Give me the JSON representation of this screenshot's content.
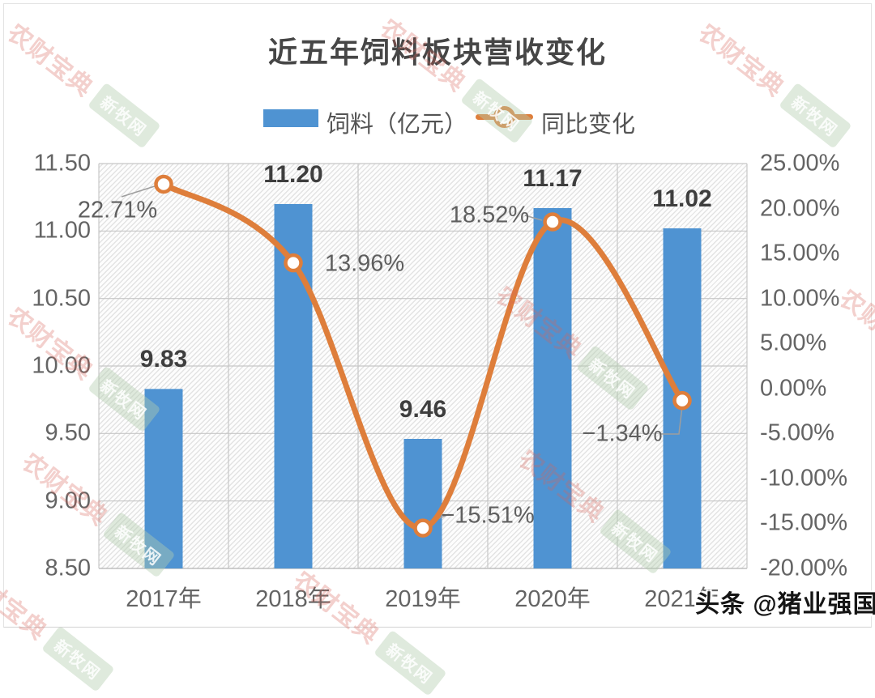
{
  "chart_data": {
    "type": "bar",
    "title": "近五年饲料板块营收变化",
    "categories": [
      "2017年",
      "2018年",
      "2019年",
      "2020年",
      "2021年"
    ],
    "series": [
      {
        "name": "饲料（亿元）",
        "kind": "bar",
        "axis": "left",
        "color": "#4F93D2",
        "values": [
          9.83,
          11.2,
          9.46,
          11.17,
          11.02
        ],
        "labels": [
          "9.83",
          "11.20",
          "9.46",
          "11.17",
          "11.02"
        ]
      },
      {
        "name": "同比变化",
        "kind": "line",
        "axis": "right",
        "color": "#DE7E3B",
        "marker": "open-circle",
        "values": [
          22.71,
          13.96,
          -15.51,
          18.52,
          -1.34
        ],
        "labels": [
          "22.71%",
          "13.96%",
          "−15.51%",
          "18.52%",
          "−1.34%"
        ]
      }
    ],
    "left_axis": {
      "min": 8.5,
      "max": 11.5,
      "step": 0.5,
      "ticks": [
        "11.50",
        "11.00",
        "10.50",
        "10.00",
        "9.50",
        "9.00",
        "8.50"
      ]
    },
    "right_axis": {
      "min": -20,
      "max": 25,
      "step": 5,
      "ticks": [
        "25.00%",
        "20.00%",
        "15.00%",
        "10.00%",
        "5.00%",
        "0.00%",
        "-5.00%",
        "-10.00%",
        "-15.00%",
        "-20.00%"
      ]
    },
    "grid": true,
    "legend_position": "top",
    "grid_color": "#c7c7c7"
  },
  "watermark": {
    "brand": "农财宝典",
    "box": "新牧网"
  },
  "badge": {
    "platform": "头条",
    "handle": "@猪业强国"
  }
}
